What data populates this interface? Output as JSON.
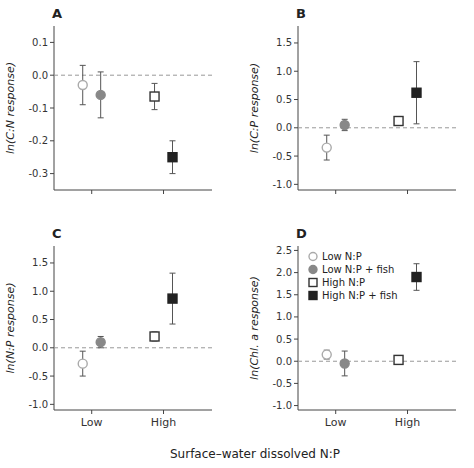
{
  "chart_data": [
    {
      "type": "scatter",
      "title": "A",
      "ylabel": "ln(C:N response)",
      "xlim": [
        0.6,
        2.8
      ],
      "xticks": [
        1.125,
        2.125
      ],
      "tick_labels": "y",
      "ylim": [
        -0.35,
        0.15
      ],
      "yticks": [
        -0.3,
        -0.2,
        -0.1,
        {
          "value": 0,
          "label": "0.0"
        },
        0.1
      ],
      "hline": 0,
      "series": [
        {
          "color": "#aaaaaa",
          "marker": "circle-open",
          "x": [
            1
          ],
          "values": [
            -0.03
          ],
          "error_lo": [
            0.06
          ],
          "error_hi": [
            0.06
          ]
        },
        {
          "color": "#888888",
          "marker": "circle",
          "x": [
            1.25
          ],
          "values": [
            -0.06
          ],
          "error_lo": [
            0.07
          ],
          "error_hi": [
            0.07
          ]
        },
        {
          "color": "#333333",
          "marker": "square-open",
          "x": [
            2
          ],
          "values": [
            -0.065
          ],
          "error_lo": [
            0.04
          ],
          "error_hi": [
            0.04
          ]
        },
        {
          "color": "#222222",
          "marker": "square",
          "x": [
            2.25
          ],
          "values": [
            -0.25
          ],
          "error_lo": [
            0.05
          ],
          "error_hi": [
            0.05
          ]
        }
      ]
    },
    {
      "type": "scatter",
      "title": "B",
      "ylabel": "ln(C:P response)",
      "xlim": [
        0.6,
        2.8
      ],
      "xticks": [
        1.125,
        2.125
      ],
      "tick_labels": "y",
      "ylim": [
        -1.1,
        1.8
      ],
      "yticks": [
        {
          "value": -1,
          "label": "-1.0"
        },
        -0.5,
        {
          "value": 0,
          "label": "0.0"
        },
        0.5,
        {
          "value": 1,
          "label": "1.0"
        },
        1.5
      ],
      "hline": 0,
      "series": [
        {
          "color": "#aaaaaa",
          "marker": "circle-open",
          "x": [
            1
          ],
          "values": [
            -0.35
          ],
          "error_lo": [
            0.22
          ],
          "error_hi": [
            0.22
          ]
        },
        {
          "color": "#888888",
          "marker": "circle",
          "x": [
            1.25
          ],
          "values": [
            0.05
          ],
          "error_lo": [
            0.1
          ],
          "error_hi": [
            0.1
          ]
        },
        {
          "color": "#333333",
          "marker": "square-open",
          "x": [
            2
          ],
          "values": [
            0.12
          ],
          "error_lo": [
            0.08
          ],
          "error_hi": [
            0.08
          ]
        },
        {
          "color": "#222222",
          "marker": "square",
          "x": [
            2.25
          ],
          "values": [
            0.62
          ],
          "error_lo": [
            0.55
          ],
          "error_hi": [
            0.55
          ]
        }
      ]
    },
    {
      "type": "scatter",
      "title": "C",
      "ylabel": "ln(N:P response)",
      "xlabel": "Surface–water dissolved N:P",
      "xlim": [
        0.6,
        2.8
      ],
      "xticks": [
        {
          "value": 1.125,
          "label": "Low"
        },
        {
          "value": 2.125,
          "label": "High"
        }
      ],
      "ylim": [
        -1.1,
        1.8
      ],
      "yticks": [
        {
          "value": -1,
          "label": "-1.0"
        },
        -0.5,
        {
          "value": 0,
          "label": "0.0"
        },
        0.5,
        {
          "value": 1,
          "label": "1.0"
        },
        1.5
      ],
      "hline": 0,
      "series": [
        {
          "color": "#aaaaaa",
          "marker": "circle-open",
          "x": [
            1
          ],
          "values": [
            -0.28
          ],
          "error_lo": [
            0.22
          ],
          "error_hi": [
            0.22
          ]
        },
        {
          "color": "#888888",
          "marker": "circle",
          "x": [
            1.25
          ],
          "values": [
            0.1
          ],
          "error_lo": [
            0.1
          ],
          "error_hi": [
            0.1
          ]
        },
        {
          "color": "#333333",
          "marker": "square-open",
          "x": [
            2
          ],
          "values": [
            0.2
          ],
          "error_lo": [
            0.08
          ],
          "error_hi": [
            0.08
          ]
        },
        {
          "color": "#222222",
          "marker": "square",
          "x": [
            2.25
          ],
          "values": [
            0.87
          ],
          "error_lo": [
            0.45
          ],
          "error_hi": [
            0.45
          ]
        }
      ]
    },
    {
      "type": "scatter",
      "title": "D",
      "ylabel": "ln(Chl. a response)",
      "xlim": [
        0.6,
        2.8
      ],
      "xticks": [
        {
          "value": 1.125,
          "label": "Low"
        },
        {
          "value": 2.125,
          "label": "High"
        }
      ],
      "ylim": [
        -1.1,
        2.6
      ],
      "yticks": [
        {
          "value": -1,
          "label": "-1.0"
        },
        -0.5,
        {
          "value": 0,
          "label": "0.0"
        },
        0.5,
        {
          "value": 1,
          "label": "1.0"
        },
        1.5,
        {
          "value": 2,
          "label": "2.0"
        },
        2.5
      ],
      "hline": 0,
      "legend": "upper left",
      "series": [
        {
          "name": "Low N:P",
          "color": "#aaaaaa",
          "marker": "circle-open",
          "x": [
            1
          ],
          "values": [
            0.15
          ],
          "error_lo": [
            0.1
          ],
          "error_hi": [
            0.1
          ]
        },
        {
          "name": "Low N:P + fish",
          "color": "#888888",
          "marker": "circle",
          "x": [
            1.25
          ],
          "values": [
            -0.05
          ],
          "error_lo": [
            0.28
          ],
          "error_hi": [
            0.28
          ]
        },
        {
          "name": "High N:P",
          "color": "#333333",
          "marker": "square-open",
          "x": [
            2
          ],
          "values": [
            0.03
          ],
          "error_lo": [
            0.1
          ],
          "error_hi": [
            0.1
          ]
        },
        {
          "name": "High N:P + fish",
          "color": "#222222",
          "marker": "square",
          "x": [
            2.25
          ],
          "values": [
            1.9
          ],
          "error_lo": [
            0.3
          ],
          "error_hi": [
            0.3
          ]
        }
      ]
    }
  ]
}
